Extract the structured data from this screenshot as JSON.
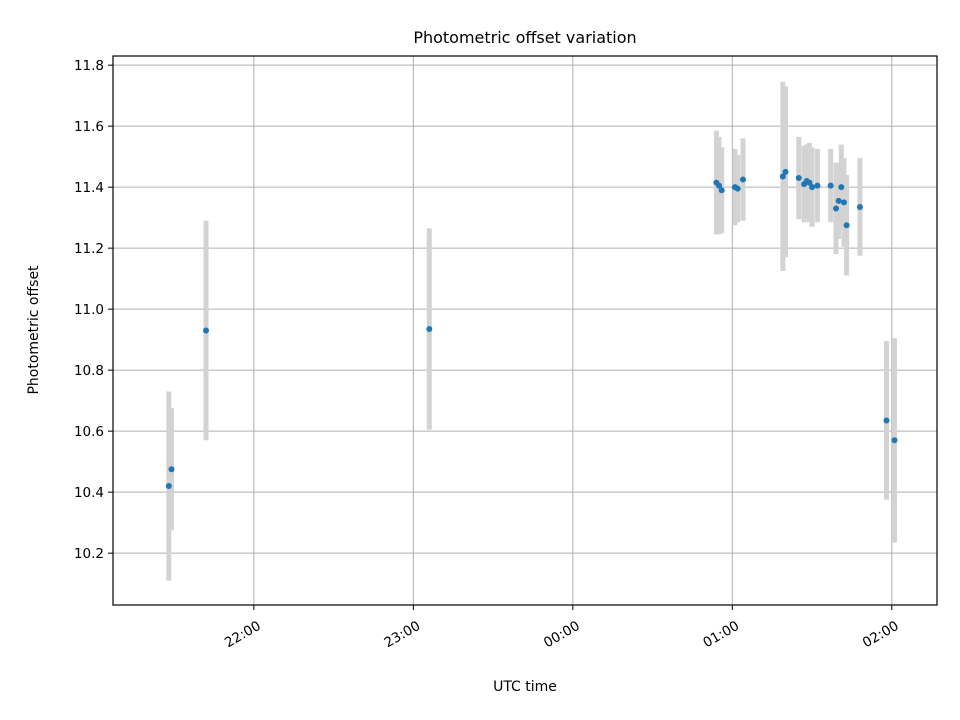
{
  "chart_data": {
    "type": "scatter",
    "title": "Photometric offset variation",
    "xlabel": "UTC time",
    "ylabel": "Photometric offset",
    "x_axis_type": "time",
    "x_reference_date": "",
    "xlim": [
      "21:07",
      "02:17"
    ],
    "ylim": [
      10.03,
      11.83
    ],
    "x_ticks": [
      "22:00",
      "23:00",
      "00:00",
      "01:00",
      "02:00"
    ],
    "y_ticks": [
      "10.2",
      "10.4",
      "10.6",
      "10.8",
      "11.0",
      "11.2",
      "11.4",
      "11.6",
      "11.8"
    ],
    "grid": true,
    "point_color": "#1f77b4",
    "errorbar_color": "#d3d3d3",
    "points": [
      {
        "x": "21:28",
        "y": 10.42,
        "yerr": 0.31
      },
      {
        "x": "21:29",
        "y": 10.475,
        "yerr": 0.2
      },
      {
        "x": "21:42",
        "y": 10.93,
        "yerr": 0.36
      },
      {
        "x": "23:06",
        "y": 10.935,
        "yerr": 0.33
      },
      {
        "x": "00:54",
        "y": 11.415,
        "yerr": 0.17
      },
      {
        "x": "00:55",
        "y": 11.405,
        "yerr": 0.16
      },
      {
        "x": "00:56",
        "y": 11.39,
        "yerr": 0.14
      },
      {
        "x": "01:01",
        "y": 11.4,
        "yerr": 0.125
      },
      {
        "x": "01:02",
        "y": 11.395,
        "yerr": 0.11
      },
      {
        "x": "01:04",
        "y": 11.425,
        "yerr": 0.135
      },
      {
        "x": "01:19",
        "y": 11.435,
        "yerr": 0.31
      },
      {
        "x": "01:20",
        "y": 11.45,
        "yerr": 0.28
      },
      {
        "x": "01:25",
        "y": 11.43,
        "yerr": 0.135
      },
      {
        "x": "01:27",
        "y": 11.41,
        "yerr": 0.125
      },
      {
        "x": "01:28",
        "y": 11.42,
        "yerr": 0.12
      },
      {
        "x": "01:29",
        "y": 11.415,
        "yerr": 0.13
      },
      {
        "x": "01:30",
        "y": 11.4,
        "yerr": 0.13
      },
      {
        "x": "01:32",
        "y": 11.405,
        "yerr": 0.12
      },
      {
        "x": "01:37",
        "y": 11.405,
        "yerr": 0.12
      },
      {
        "x": "01:39",
        "y": 11.33,
        "yerr": 0.15
      },
      {
        "x": "01:40",
        "y": 11.355,
        "yerr": 0.125
      },
      {
        "x": "01:41",
        "y": 11.4,
        "yerr": 0.14
      },
      {
        "x": "01:42",
        "y": 11.35,
        "yerr": 0.145
      },
      {
        "x": "01:43",
        "y": 11.275,
        "yerr": 0.165
      },
      {
        "x": "01:48",
        "y": 11.335,
        "yerr": 0.16
      },
      {
        "x": "01:58",
        "y": 10.635,
        "yerr": 0.26
      },
      {
        "x": "02:01",
        "y": 10.57,
        "yerr": 0.335
      }
    ]
  }
}
